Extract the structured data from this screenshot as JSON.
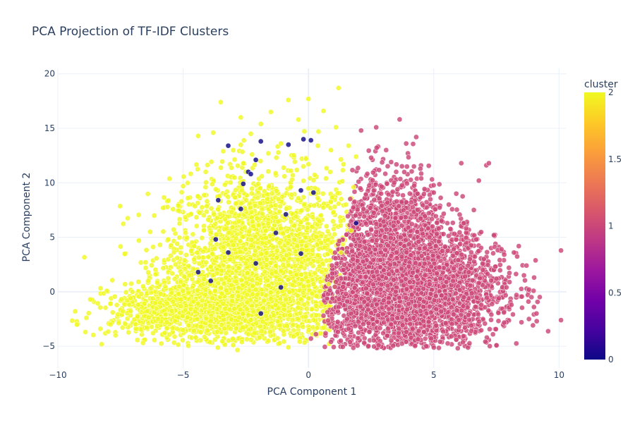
{
  "chart_data": {
    "type": "scatter",
    "title": "PCA Projection of TF-IDF Clusters",
    "xlabel": "PCA Component 1",
    "ylabel": "PCA Component 2",
    "xlim": [
      -10,
      10.3
    ],
    "ylim": [
      -7,
      20.5
    ],
    "xticks": [
      -10,
      -5,
      0,
      5,
      10
    ],
    "xtick_labels": [
      "−10",
      "−5",
      "0",
      "5",
      "10"
    ],
    "yticks": [
      -5,
      0,
      5,
      10,
      15,
      20
    ],
    "yticks_labels": [
      "−5",
      "0",
      "5",
      "10",
      "15",
      "20"
    ],
    "grid": true,
    "colorbar": {
      "title": "cluster",
      "range": [
        0,
        2
      ],
      "ticks": [
        0,
        0.5,
        1,
        1.5,
        2
      ],
      "tick_labels": [
        "0",
        "0.5",
        "1",
        "1.5",
        "2"
      ],
      "colorscale": [
        "#0d0887",
        "#46039f",
        "#7201a8",
        "#9c179e",
        "#bd3786",
        "#d8576b",
        "#ed7953",
        "#fb9f3a",
        "#fdca26",
        "#f0f921"
      ]
    },
    "series": [
      {
        "cluster": 2,
        "color": "#f0f921",
        "points": [
          [
            -8.9,
            -3.7
          ],
          [
            -8.3,
            -3.4
          ],
          [
            -7.9,
            -3.0
          ],
          [
            -7.7,
            -4.0
          ],
          [
            -7.4,
            -1.8
          ],
          [
            -7.1,
            -0.6
          ],
          [
            -6.6,
            -4.7
          ],
          [
            -6.5,
            2.7
          ],
          [
            -6.3,
            0.3
          ],
          [
            -6.1,
            1.6
          ],
          [
            -6.0,
            -2.5
          ],
          [
            -5.8,
            7.7
          ],
          [
            -5.6,
            4.8
          ],
          [
            -5.5,
            3.3
          ],
          [
            -5.4,
            -0.9
          ],
          [
            -5.2,
            7.9
          ],
          [
            -5.0,
            9.7
          ],
          [
            -4.9,
            5.4
          ],
          [
            -4.6,
            2.1
          ],
          [
            -4.4,
            14.3
          ],
          [
            -4.3,
            -3.2
          ],
          [
            -4.1,
            11.0
          ],
          [
            -4.0,
            6.6
          ],
          [
            -3.8,
            14.6
          ],
          [
            -3.7,
            9.4
          ],
          [
            -3.6,
            0.8
          ],
          [
            -3.5,
            17.4
          ],
          [
            -3.4,
            12.9
          ],
          [
            -3.2,
            4.3
          ],
          [
            -3.0,
            -4.9
          ],
          [
            -2.9,
            8.1
          ],
          [
            -2.7,
            16.0
          ],
          [
            -2.6,
            11.8
          ],
          [
            -2.5,
            2.6
          ],
          [
            -2.3,
            14.5
          ],
          [
            -2.2,
            6.0
          ],
          [
            -2.0,
            9.9
          ],
          [
            -1.9,
            15.4
          ],
          [
            -1.8,
            -1.5
          ],
          [
            -1.6,
            12.7
          ],
          [
            -1.5,
            16.5
          ],
          [
            -1.4,
            4.1
          ],
          [
            -1.2,
            8.5
          ],
          [
            -1.1,
            13.6
          ],
          [
            -1.0,
            -3.6
          ],
          [
            -0.8,
            17.6
          ],
          [
            -0.7,
            11.1
          ],
          [
            -0.5,
            6.9
          ],
          [
            -0.4,
            15.8
          ],
          [
            -0.3,
            2.3
          ],
          [
            -0.1,
            12.2
          ],
          [
            0.0,
            17.7
          ],
          [
            0.1,
            9.0
          ],
          [
            0.2,
            -2.6
          ],
          [
            0.4,
            14.7
          ],
          [
            0.5,
            5.1
          ],
          [
            0.6,
            16.6
          ],
          [
            0.7,
            10.4
          ],
          [
            0.8,
            0.7
          ],
          [
            0.9,
            13.0
          ],
          [
            1.0,
            7.3
          ],
          [
            1.1,
            15.1
          ],
          [
            1.2,
            18.7
          ],
          [
            1.3,
            3.6
          ],
          [
            1.4,
            11.7
          ],
          [
            1.5,
            8.0
          ],
          [
            1.6,
            13.4
          ],
          [
            1.7,
            5.6
          ],
          [
            1.8,
            9.6
          ],
          [
            1.9,
            12.4
          ],
          [
            -6.8,
            -1.2
          ],
          [
            -6.2,
            -3.8
          ],
          [
            -5.7,
            -2.1
          ],
          [
            -5.1,
            0.9
          ],
          [
            -4.7,
            -1.6
          ],
          [
            -4.2,
            3.7
          ],
          [
            -3.9,
            -2.7
          ],
          [
            -3.3,
            1.3
          ],
          [
            -2.8,
            -0.4
          ],
          [
            -2.4,
            -3.9
          ],
          [
            -2.1,
            0.2
          ],
          [
            -1.7,
            -2.2
          ],
          [
            -1.3,
            1.8
          ],
          [
            -0.9,
            -0.7
          ],
          [
            -0.6,
            -4.1
          ],
          [
            -0.2,
            0.5
          ],
          [
            0.3,
            -1.3
          ],
          [
            0.6,
            -3.3
          ],
          [
            -7.9,
            -1.1
          ],
          [
            -6.9,
            -3.0
          ],
          [
            -4.5,
            -4.2
          ],
          [
            -3.1,
            -3.4
          ],
          [
            -1.6,
            -4.5
          ],
          [
            -0.8,
            -5.1
          ],
          [
            -6.4,
            1.0
          ],
          [
            -5.9,
            -0.2
          ],
          [
            -5.3,
            2.5
          ],
          [
            -4.8,
            -0.1
          ],
          [
            -3.8,
            4.9
          ],
          [
            -3.4,
            -1.1
          ]
        ]
      },
      {
        "cluster": 1,
        "color": "#cc4778",
        "points": [
          [
            0.1,
            -4.3
          ],
          [
            0.3,
            -3.9
          ],
          [
            0.6,
            -2.2
          ],
          [
            0.9,
            -4.6
          ],
          [
            1.2,
            -1.4
          ],
          [
            1.4,
            2.0
          ],
          [
            1.6,
            -3.4
          ],
          [
            1.8,
            4.8
          ],
          [
            1.9,
            -0.4
          ],
          [
            2.0,
            10.1
          ],
          [
            2.1,
            14.8
          ],
          [
            2.2,
            7.6
          ],
          [
            2.4,
            -2.9
          ],
          [
            2.5,
            12.3
          ],
          [
            2.6,
            1.4
          ],
          [
            2.7,
            5.5
          ],
          [
            2.8,
            -4.9
          ],
          [
            2.9,
            9.0
          ],
          [
            3.1,
            13.0
          ],
          [
            3.2,
            -1.6
          ],
          [
            3.3,
            3.3
          ],
          [
            3.5,
            11.0
          ],
          [
            3.6,
            -3.8
          ],
          [
            3.7,
            6.8
          ],
          [
            3.8,
            0.6
          ],
          [
            3.9,
            13.6
          ],
          [
            4.1,
            8.2
          ],
          [
            4.2,
            -2.4
          ],
          [
            4.3,
            14.2
          ],
          [
            4.4,
            4.6
          ],
          [
            4.5,
            10.4
          ],
          [
            4.6,
            -0.9
          ],
          [
            4.7,
            -5.0
          ],
          [
            4.8,
            7.2
          ],
          [
            4.9,
            2.3
          ],
          [
            5.0,
            9.1
          ],
          [
            5.1,
            -3.1
          ],
          [
            5.2,
            5.8
          ],
          [
            5.3,
            -1.8
          ],
          [
            5.5,
            0.9
          ],
          [
            5.6,
            8.0
          ],
          [
            5.7,
            -4.1
          ],
          [
            5.8,
            3.9
          ],
          [
            5.9,
            9.0
          ],
          [
            6.0,
            -2.6
          ],
          [
            6.1,
            11.8
          ],
          [
            6.2,
            6.3
          ],
          [
            6.3,
            -0.2
          ],
          [
            6.4,
            1.8
          ],
          [
            6.5,
            -3.6
          ],
          [
            6.6,
            7.5
          ],
          [
            6.7,
            4.8
          ],
          [
            6.8,
            10.2
          ],
          [
            6.9,
            -1.2
          ],
          [
            7.0,
            3.0
          ],
          [
            7.1,
            11.6
          ],
          [
            7.2,
            11.8
          ],
          [
            7.3,
            -2.1
          ],
          [
            7.4,
            5.2
          ],
          [
            7.5,
            1.2
          ],
          [
            7.6,
            -0.6
          ],
          [
            7.7,
            3.9
          ],
          [
            7.8,
            -1.9
          ],
          [
            7.9,
            0.4
          ],
          [
            8.0,
            2.2
          ],
          [
            8.1,
            -1.2
          ],
          [
            8.2,
            3.6
          ],
          [
            8.3,
            -0.3
          ],
          [
            8.5,
            -2.8
          ],
          [
            8.6,
            1.5
          ],
          [
            8.7,
            2.4
          ],
          [
            8.8,
            -2.5
          ],
          [
            8.9,
            -0.5
          ],
          [
            9.0,
            -1.4
          ],
          [
            9.1,
            -2.0
          ],
          [
            1.5,
            -0.2
          ],
          [
            2.3,
            0.3
          ],
          [
            3.0,
            -0.8
          ],
          [
            3.4,
            1.1
          ],
          [
            4.0,
            -1.1
          ],
          [
            4.4,
            0.2
          ],
          [
            5.4,
            0.5
          ],
          [
            6.2,
            -0.5
          ],
          [
            6.8,
            0.8
          ],
          [
            1.1,
            0.9
          ],
          [
            1.7,
            -2.0
          ],
          [
            2.6,
            -3.0
          ],
          [
            3.9,
            -4.6
          ],
          [
            4.9,
            -4.3
          ],
          [
            5.9,
            -4.4
          ]
        ]
      },
      {
        "cluster": 0,
        "color": "#0d0887",
        "points": [
          [
            -3.2,
            13.4
          ],
          [
            -1.9,
            13.8
          ],
          [
            -0.8,
            13.5
          ],
          [
            -0.2,
            14.0
          ],
          [
            0.1,
            13.9
          ],
          [
            -2.4,
            11.0
          ],
          [
            -2.1,
            12.1
          ],
          [
            -2.3,
            10.8
          ],
          [
            -3.6,
            8.4
          ],
          [
            -2.7,
            7.6
          ],
          [
            -3.2,
            3.6
          ],
          [
            -2.1,
            2.6
          ],
          [
            -0.3,
            3.5
          ],
          [
            -4.4,
            1.8
          ],
          [
            -1.1,
            0.4
          ],
          [
            -1.9,
            -2.0
          ],
          [
            -3.7,
            4.8
          ],
          [
            -0.3,
            9.3
          ],
          [
            0.2,
            9.1
          ],
          [
            1.9,
            6.3
          ],
          [
            -1.3,
            5.4
          ],
          [
            -2.6,
            9.9
          ],
          [
            -3.9,
            1.0
          ],
          [
            -0.9,
            7.1
          ]
        ]
      }
    ]
  }
}
